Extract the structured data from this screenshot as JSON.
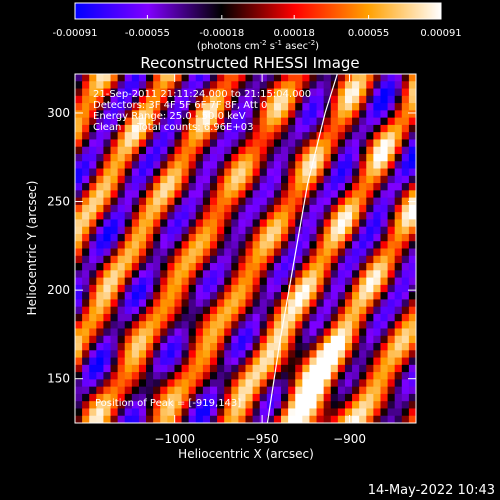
{
  "chart_data": {
    "type": "heatmap",
    "title": "Reconstructed RHESSI Image",
    "xlabel": "Heliocentric X (arcsec)",
    "ylabel": "Heliocentric Y (arcsec)",
    "xlim": [
      -1057,
      -862
    ],
    "ylim": [
      125,
      322
    ],
    "xticks": [
      {
        "value": -1000,
        "label": "−1000"
      },
      {
        "value": -950,
        "label": "−950"
      },
      {
        "value": -900,
        "label": "−900"
      }
    ],
    "yticks": [
      {
        "value": 150,
        "label": "150"
      },
      {
        "value": 200,
        "label": "200"
      },
      {
        "value": 250,
        "label": "250"
      },
      {
        "value": 300,
        "label": "300"
      }
    ],
    "annotations": [
      "21-Sep-2011 21:11:24.000 to 21:15:04.000",
      "Detectors: 3F 4F 5F 6F 7F 8F, Att 0",
      "Energy Range: 25.0 - 50.0 keV",
      "Clean     Total counts: 6.96E+03"
    ],
    "peak_label": "Position of Peak = [-919,143]",
    "peak": [
      -919,
      143
    ],
    "colorbar": {
      "range": [
        -0.00091,
        0.00091
      ],
      "tick_labels": [
        "-0.00091",
        "-0.00055",
        "-0.00018",
        "0.00018",
        "0.00055",
        "0.00091"
      ],
      "tick_values": [
        -0.00091,
        -0.00055,
        -0.00018,
        0.00018,
        0.00055,
        0.00091
      ],
      "units_base": "(photons cm",
      "units_exp1": "-2",
      "units_mid": " s",
      "units_exp2": "-1",
      "units_mid2": " asec",
      "units_exp3": "-2",
      "units_end": ")",
      "colormap": [
        "#0000ff",
        "#8000ff",
        "#000000",
        "#ff0000",
        "#ffa000",
        "#ffffff"
      ]
    },
    "limb_curve": [
      [
        -947,
        125
      ],
      [
        -940,
        170
      ],
      [
        -932,
        215
      ],
      [
        -924,
        260
      ],
      [
        -914,
        300
      ],
      [
        -907,
        322
      ]
    ],
    "limb_color": "#ffffff"
  },
  "timestamp": "14-May-2022 10:43"
}
